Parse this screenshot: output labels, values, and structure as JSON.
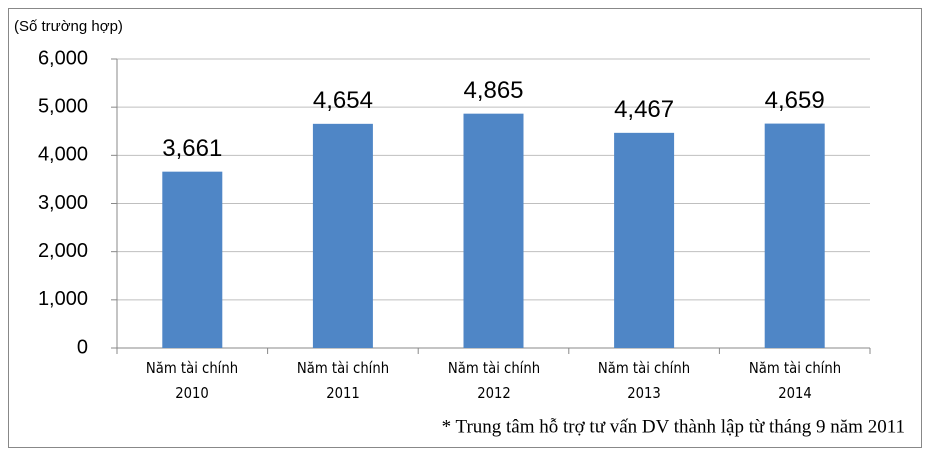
{
  "chart_data": {
    "type": "bar",
    "y_label": "(Số trường hợp)",
    "note": "* Trung tâm hỗ trợ tư vấn DV thành lập từ tháng 9 năm 2011",
    "categories": [
      "Năm tài chính\n2010",
      "Năm tài chính\n2011",
      "Năm tài chính\n2012",
      "Năm tài chính\n2013",
      "Năm tài chính\n2014"
    ],
    "values": [
      3661,
      4654,
      4865,
      4467,
      4659
    ],
    "value_labels": [
      "3,661",
      "4,654",
      "4,865",
      "4,467",
      "4,659"
    ],
    "color": "#4f86c6",
    "ylim": [
      0,
      6000
    ],
    "yticks": [
      0,
      {
        "value": 1000,
        "label": "1,000"
      },
      {
        "value": 2000,
        "label": "2,000"
      },
      {
        "value": 3000,
        "label": "3,000"
      },
      {
        "value": 4000,
        "label": "4,000"
      },
      {
        "value": 5000,
        "label": "5,000"
      },
      {
        "value": 6000,
        "label": "6,000"
      }
    ],
    "grid": true
  }
}
